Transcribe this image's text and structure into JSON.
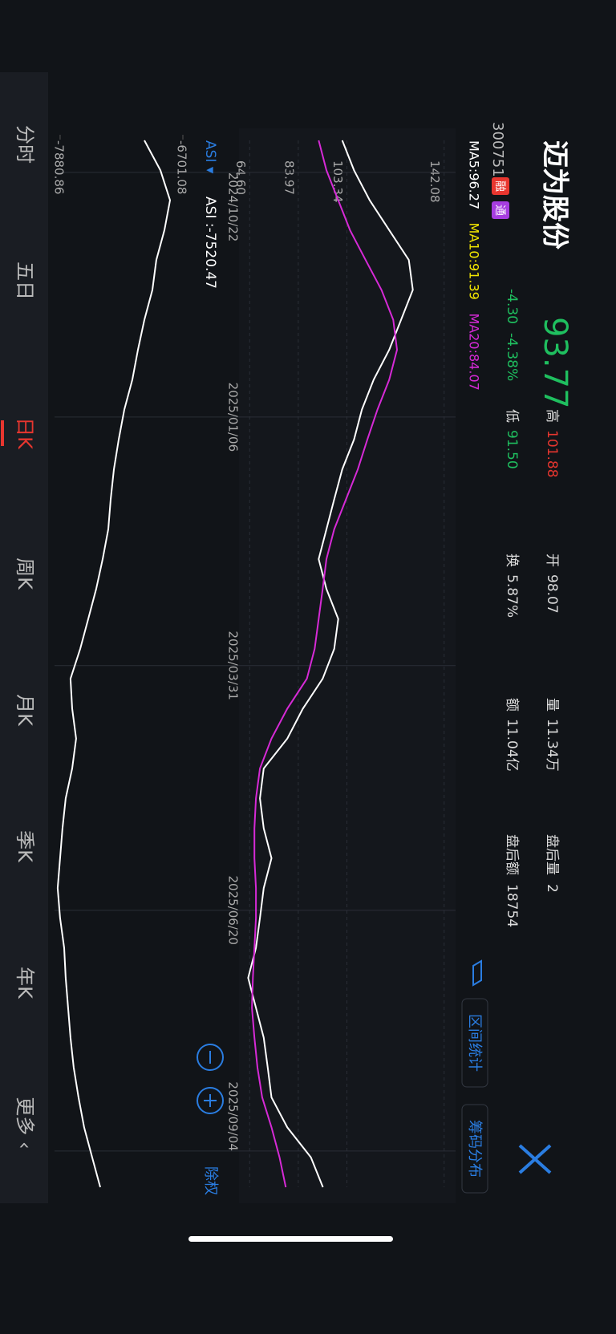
{
  "header": {
    "name": "迈为股份",
    "code": "300751",
    "tags": [
      "融",
      "通"
    ],
    "price": "93.77",
    "change": "-4.30",
    "change_pct": "-4.38%",
    "stats": [
      {
        "label": "高",
        "value": "101.88"
      },
      {
        "label": "低",
        "value": "91.50"
      },
      {
        "label": "开",
        "value": "98.07"
      },
      {
        "label": "换",
        "value": "5.87%"
      },
      {
        "label": "量",
        "value": "11.34万"
      },
      {
        "label": "额",
        "value": "11.04亿"
      },
      {
        "label": "盘后量",
        "value": "2"
      },
      {
        "label": "盘后额",
        "value": "18754"
      }
    ],
    "buttons": [
      "区间统计",
      "筹码分布"
    ]
  },
  "chart_data": [
    {
      "type": "line",
      "legend": [
        {
          "name": "MA5:96.27",
          "color": "#ffffff"
        },
        {
          "name": "MA10:91.39",
          "color": "#f2e600"
        },
        {
          "name": "MA20:84.07",
          "color": "#d62ad6"
        }
      ],
      "x": [
        0,
        1,
        2,
        3,
        4,
        5,
        6,
        7,
        8,
        9,
        10,
        11,
        12,
        13,
        14,
        15,
        16,
        17,
        18,
        19,
        20,
        21,
        22,
        23,
        24,
        25,
        26,
        27,
        28,
        29,
        30,
        31,
        32,
        33,
        34,
        35
      ],
      "series": [
        {
          "color": "#ffffff",
          "values": [
            101.5,
            106.2,
            112.4,
            120.2,
            128.0,
            129.6,
            124.9,
            120.2,
            114.0,
            109.3,
            106.2,
            101.5,
            98.3,
            95.2,
            92.1,
            95.2,
            99.9,
            98.3,
            93.7,
            85.8,
            79.6,
            70.2,
            68.7,
            70.2,
            73.3,
            70.2,
            68.7,
            67.1,
            64.0,
            67.1,
            70.2,
            71.8,
            73.3,
            79.6,
            89.0,
            93.8
          ]
        },
        {
          "color": "#d62ad6",
          "values": [
            92.1,
            95.2,
            99.9,
            104.6,
            110.8,
            117.1,
            121.8,
            123.3,
            120.2,
            115.5,
            111.5,
            107.7,
            103.0,
            98.3,
            95.2,
            93.7,
            92.1,
            90.5,
            87.4,
            79.6,
            73.3,
            68.7,
            67.1,
            66.5,
            66.5,
            67.1,
            67.1,
            66.5,
            65.9,
            65.5,
            66.5,
            67.7,
            69.6,
            73.3,
            76.5,
            79.0
          ]
        }
      ],
      "xlim": [
        0,
        35
      ],
      "xticks": [
        {
          "value": 1.07,
          "label": "2024/10/22"
        },
        {
          "value": 9.25,
          "label": "2025/01/06"
        },
        {
          "value": 17.56,
          "label": "2025/03/31"
        },
        {
          "value": 25.74,
          "label": "2025/06/20"
        },
        {
          "value": 33.79,
          "label": "2025/09/04"
        }
      ],
      "ylim": [
        61,
        146
      ],
      "yticks": [
        142.08,
        103.34,
        83.97,
        {
          "value": 64.6,
          "label": "64.60"
        }
      ],
      "grid": true
    },
    {
      "type": "line",
      "title": "ASI ▾",
      "value_label": "ASI :-7520.47",
      "x": [
        0,
        1,
        2,
        3,
        4,
        5,
        6,
        7,
        8,
        9,
        10,
        11,
        12,
        13,
        14,
        15,
        16,
        17,
        18,
        19,
        20,
        21,
        22,
        23,
        24,
        25,
        26,
        27,
        28,
        29,
        30,
        31,
        32,
        33,
        34,
        35
      ],
      "series": [
        {
          "color": "#ffffff",
          "values": [
            -7071,
            -6917,
            -6824,
            -6878,
            -6956,
            -6994,
            -7071,
            -7133,
            -7187,
            -7264,
            -7318,
            -7364,
            -7395,
            -7418,
            -7472,
            -7534,
            -7611,
            -7688,
            -7781,
            -7765,
            -7727,
            -7765,
            -7827,
            -7858,
            -7881,
            -7904,
            -7881,
            -7842,
            -7827,
            -7804,
            -7781,
            -7750,
            -7704,
            -7650,
            -7573,
            -7495
          ]
        }
      ],
      "xlim": [
        0,
        35
      ],
      "ylim": [
        -7919,
        -6570
      ],
      "yticks": [
        -6701.08,
        -7880.86
      ]
    }
  ],
  "controls": {
    "adjust": "除权"
  },
  "tabs": [
    "分时",
    "五日",
    "日K",
    "周K",
    "月K",
    "季K",
    "年K",
    "更多 ‹"
  ],
  "active_tab": 2
}
